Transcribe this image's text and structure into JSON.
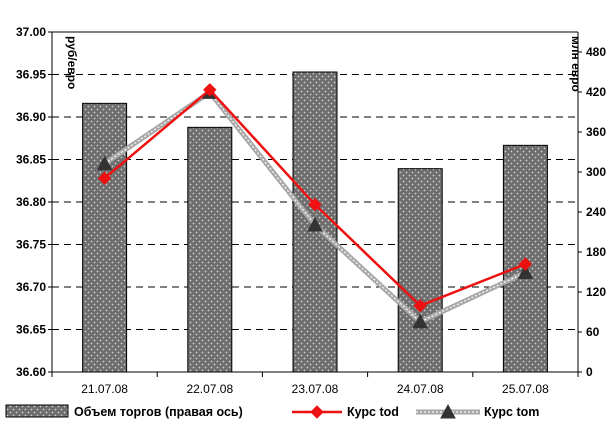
{
  "chart_data": {
    "type": "bar+line",
    "categories": [
      "21.07.08",
      "22.07.08",
      "23.07.08",
      "24.07.08",
      "25.07.08"
    ],
    "y_left": {
      "label": "руб/евро",
      "lim": [
        36.6,
        37.0
      ],
      "ticks": [
        "36.60",
        "36.65",
        "36.70",
        "36.75",
        "36.80",
        "36.85",
        "36.90",
        "36.95",
        "37.00"
      ]
    },
    "y_right": {
      "label": "млн евро",
      "lim": [
        0,
        510
      ],
      "ticks": [
        "0",
        "60",
        "120",
        "180",
        "240",
        "300",
        "360",
        "420",
        "480"
      ]
    },
    "grid": "horizontal dashed",
    "legend_position": "bottom",
    "series": [
      {
        "name": "Объем торгов (правая ось)",
        "kind": "bar",
        "axis": "right",
        "values": [
          403,
          367,
          450,
          305,
          340
        ],
        "color": "#777777"
      },
      {
        "name": "Курс tod",
        "kind": "line",
        "axis": "left",
        "marker": "diamond",
        "values": [
          36.828,
          36.932,
          36.797,
          36.678,
          36.727
        ],
        "color": "#ee1111"
      },
      {
        "name": "Курс tom",
        "kind": "line",
        "axis": "left",
        "marker": "triangle",
        "values": [
          36.845,
          36.929,
          36.773,
          36.659,
          36.717
        ],
        "color": "#a8a8a8"
      }
    ]
  }
}
